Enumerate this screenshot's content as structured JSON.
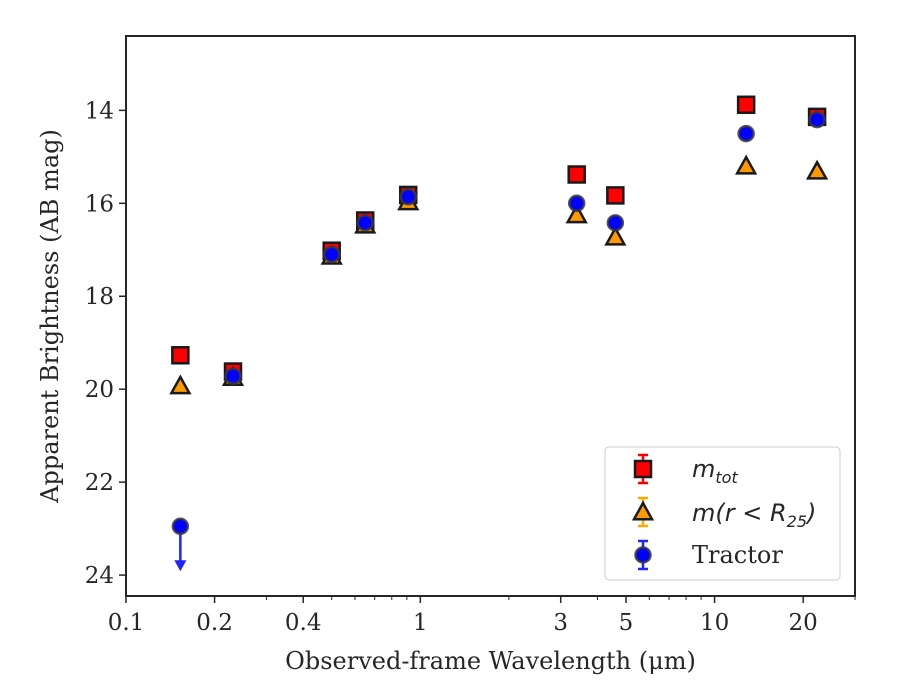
{
  "chart_data": {
    "type": "scatter",
    "xlabel": "Observed-frame Wavelength (μm)",
    "ylabel": "Apparent Brightness (AB mag)",
    "x_scale": "log",
    "xlim": [
      0.1,
      30
    ],
    "ylim": [
      24.45,
      12.4
    ],
    "y_inverted": true,
    "x_ticks": [
      0.1,
      0.2,
      0.4,
      1,
      3,
      5,
      10,
      20
    ],
    "x_tick_labels": [
      "0.1",
      "0.2",
      "0.4",
      "1",
      "3",
      "5",
      "10",
      "20"
    ],
    "y_ticks": [
      14,
      16,
      18,
      20,
      22,
      24
    ],
    "y_tick_labels": [
      "14",
      "16",
      "18",
      "20",
      "22",
      "24"
    ],
    "legend_position": "lower-right",
    "series": [
      {
        "name": "m_tot",
        "marker": "square",
        "color": "#ff0000",
        "error_color": "#ff0000",
        "points": [
          {
            "x": 0.153,
            "y": 19.27
          },
          {
            "x": 0.231,
            "y": 19.62
          },
          {
            "x": 0.5,
            "y": 17.02
          },
          {
            "x": 0.65,
            "y": 16.37
          },
          {
            "x": 0.91,
            "y": 15.82
          },
          {
            "x": 3.4,
            "y": 15.38
          },
          {
            "x": 4.6,
            "y": 15.83
          },
          {
            "x": 12.8,
            "y": 13.88
          },
          {
            "x": 22.3,
            "y": 14.14
          }
        ]
      },
      {
        "name": "m(r < R25)",
        "marker": "triangle",
        "color": "#ff9900",
        "error_color": "#ffaa00",
        "points": [
          {
            "x": 0.153,
            "y": 19.93
          },
          {
            "x": 0.231,
            "y": 19.75
          },
          {
            "x": 0.5,
            "y": 17.14
          },
          {
            "x": 0.65,
            "y": 16.47
          },
          {
            "x": 0.91,
            "y": 15.97
          },
          {
            "x": 3.4,
            "y": 16.25
          },
          {
            "x": 4.6,
            "y": 16.73
          },
          {
            "x": 12.8,
            "y": 15.2
          },
          {
            "x": 22.3,
            "y": 15.31
          }
        ]
      },
      {
        "name": "Tractor",
        "marker": "circle",
        "color": "#0000ff",
        "error_color": "#2222ff",
        "points": [
          {
            "x": 0.153,
            "y": 22.95,
            "upper_limit": true
          },
          {
            "x": 0.231,
            "y": 19.72
          },
          {
            "x": 0.5,
            "y": 17.1
          },
          {
            "x": 0.65,
            "y": 16.42
          },
          {
            "x": 0.91,
            "y": 15.86
          },
          {
            "x": 3.4,
            "y": 16.0
          },
          {
            "x": 4.6,
            "y": 16.42
          },
          {
            "x": 12.8,
            "y": 14.5
          },
          {
            "x": 22.3,
            "y": 14.2
          }
        ]
      }
    ]
  },
  "legend": {
    "entry_mtot_main": "m",
    "entry_mtot_sub": "tot",
    "entry_mr_pre": "m(r < R",
    "entry_mr_sub": "25",
    "entry_mr_post": ")",
    "entry_tractor": "Tractor"
  }
}
